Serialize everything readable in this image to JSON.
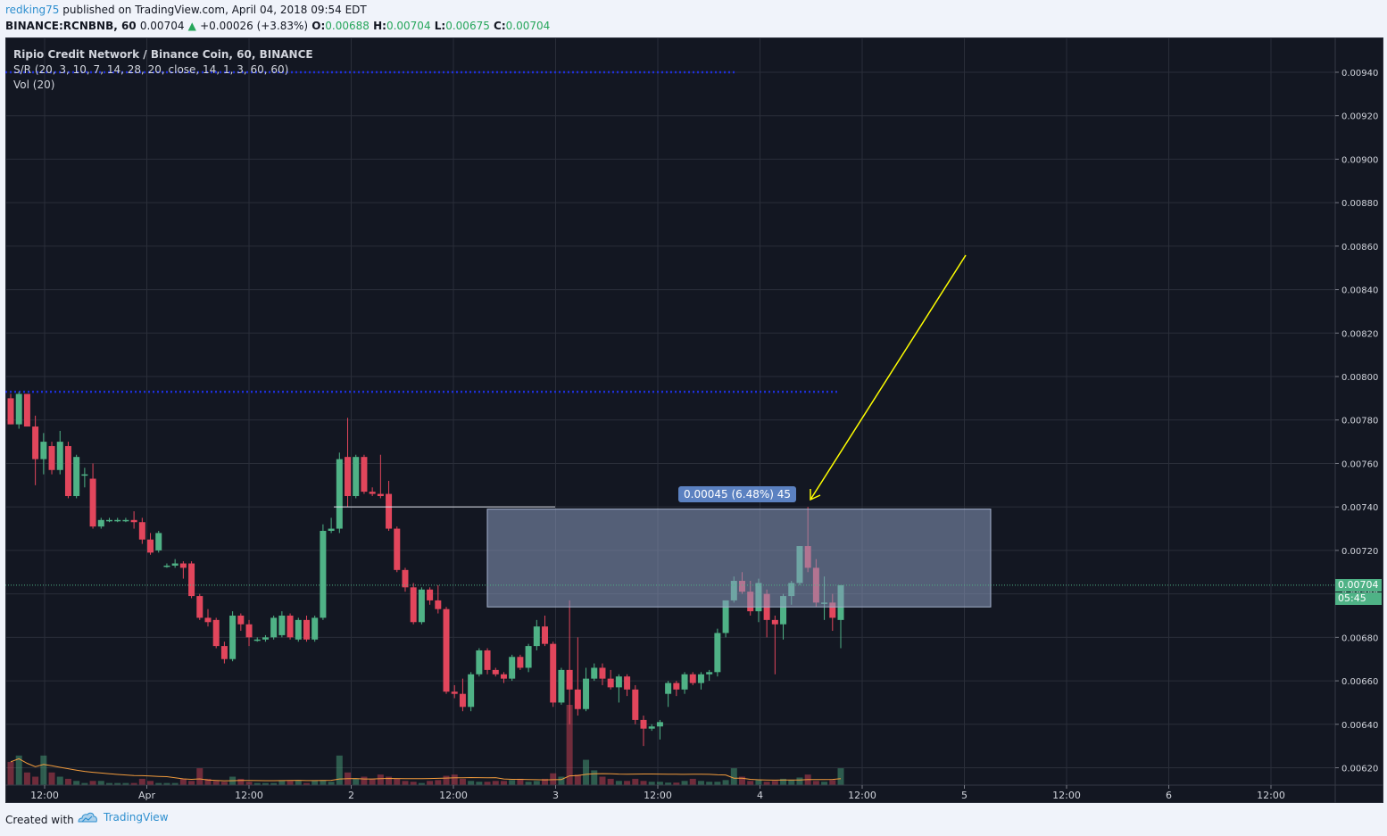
{
  "header": {
    "user": "redking75",
    "published_text": "published on TradingView.com, April 04, 2018 09:54 EDT",
    "symbol": "BINANCE:RCNBNB, 60",
    "last": "0.00704",
    "change": "+0.00026 (+3.83%)",
    "open_label": "O:",
    "open": "0.00688",
    "high_label": "H:",
    "high": "0.00704",
    "low_label": "L:",
    "low": "0.00675",
    "close_label": "C:",
    "close": "0.00704"
  },
  "legend": {
    "title": "Ripio Credit Network / Binance Coin, 60, BINANCE",
    "indicator1": "S/R (20, 3, 10, 7, 14, 28, 20, close, 14, 1, 3, 60, 60)",
    "indicator2": "Vol (20)"
  },
  "measure_label": "0.00045 (6.48%) 45",
  "price_tag": {
    "value": "0.00704",
    "countdown": "05:45"
  },
  "footer": {
    "created_with": "Created with",
    "brand": "TradingView"
  },
  "colors": {
    "up": "#4fb286",
    "down": "#e2465c",
    "bg": "#131722",
    "accent": "#2e8fcf",
    "arrow": "#ffff00",
    "sr_line": "#1e2fd8"
  },
  "chart_data": {
    "type": "candlestick",
    "title": "Ripio Credit Network / Binance Coin, 60, BINANCE",
    "ylim": [
      0.00612,
      0.00956
    ],
    "y_ticks": [
      "0.00620",
      "0.00640",
      "0.00660",
      "0.00680",
      "0.00700",
      "0.00720",
      "0.00740",
      "0.00760",
      "0.00780",
      "0.00800",
      "0.00820",
      "0.00840",
      "0.00860",
      "0.00880",
      "0.00900",
      "0.00920",
      "0.00940"
    ],
    "x_ticks": [
      "12:00",
      "Apr",
      "12:00",
      "2",
      "12:00",
      "3",
      "12:00",
      "4",
      "12:00",
      "5",
      "12:00",
      "6",
      "12:00"
    ],
    "grid": true,
    "support_resistance": [
      0.0094,
      0.00793
    ],
    "last_price": 0.00704,
    "candles": [
      {
        "o": 0.0079,
        "h": 0.00792,
        "l": 0.00778,
        "c": 0.00778
      },
      {
        "o": 0.00778,
        "h": 0.00793,
        "l": 0.00776,
        "c": 0.00792
      },
      {
        "o": 0.00792,
        "h": 0.00792,
        "l": 0.00778,
        "c": 0.00777
      },
      {
        "o": 0.00777,
        "h": 0.00782,
        "l": 0.0075,
        "c": 0.00762
      },
      {
        "o": 0.00762,
        "h": 0.00774,
        "l": 0.00755,
        "c": 0.0077
      },
      {
        "o": 0.00768,
        "h": 0.0077,
        "l": 0.00755,
        "c": 0.00757
      },
      {
        "o": 0.00757,
        "h": 0.00775,
        "l": 0.00755,
        "c": 0.0077
      },
      {
        "o": 0.00768,
        "h": 0.0077,
        "l": 0.00744,
        "c": 0.00745
      },
      {
        "o": 0.00745,
        "h": 0.00764,
        "l": 0.00744,
        "c": 0.00763
      },
      {
        "o": 0.00755,
        "h": 0.00758,
        "l": 0.00749,
        "c": 0.00755
      },
      {
        "o": 0.00753,
        "h": 0.0076,
        "l": 0.0073,
        "c": 0.00731
      },
      {
        "o": 0.00731,
        "h": 0.00735,
        "l": 0.0073,
        "c": 0.00734
      },
      {
        "o": 0.00734,
        "h": 0.00735,
        "l": 0.00733,
        "c": 0.00734
      },
      {
        "o": 0.00734,
        "h": 0.00735,
        "l": 0.00733,
        "c": 0.00734
      },
      {
        "o": 0.00734,
        "h": 0.00735,
        "l": 0.00733,
        "c": 0.00734
      },
      {
        "o": 0.00734,
        "h": 0.00738,
        "l": 0.0073,
        "c": 0.00733
      },
      {
        "o": 0.00733,
        "h": 0.00735,
        "l": 0.00723,
        "c": 0.00725
      },
      {
        "o": 0.00725,
        "h": 0.00728,
        "l": 0.00718,
        "c": 0.00719
      },
      {
        "o": 0.0072,
        "h": 0.00729,
        "l": 0.00719,
        "c": 0.00728
      },
      {
        "o": 0.00713,
        "h": 0.00714,
        "l": 0.00712,
        "c": 0.00713
      },
      {
        "o": 0.00713,
        "h": 0.00716,
        "l": 0.00712,
        "c": 0.00714
      },
      {
        "o": 0.00714,
        "h": 0.00715,
        "l": 0.00707,
        "c": 0.00712
      },
      {
        "o": 0.00714,
        "h": 0.00715,
        "l": 0.00698,
        "c": 0.00699
      },
      {
        "o": 0.00699,
        "h": 0.007,
        "l": 0.00688,
        "c": 0.00689
      },
      {
        "o": 0.00689,
        "h": 0.00693,
        "l": 0.00685,
        "c": 0.00687
      },
      {
        "o": 0.00688,
        "h": 0.00689,
        "l": 0.00675,
        "c": 0.00676
      },
      {
        "o": 0.00676,
        "h": 0.00678,
        "l": 0.00668,
        "c": 0.0067
      },
      {
        "o": 0.0067,
        "h": 0.00692,
        "l": 0.00669,
        "c": 0.0069
      },
      {
        "o": 0.0069,
        "h": 0.00691,
        "l": 0.00683,
        "c": 0.00686
      },
      {
        "o": 0.00686,
        "h": 0.00688,
        "l": 0.00676,
        "c": 0.0068
      },
      {
        "o": 0.00679,
        "h": 0.0068,
        "l": 0.00678,
        "c": 0.00679
      },
      {
        "o": 0.00679,
        "h": 0.00681,
        "l": 0.00678,
        "c": 0.0068
      },
      {
        "o": 0.0068,
        "h": 0.0069,
        "l": 0.00679,
        "c": 0.00689
      },
      {
        "o": 0.00681,
        "h": 0.00692,
        "l": 0.0068,
        "c": 0.0069
      },
      {
        "o": 0.0069,
        "h": 0.00691,
        "l": 0.00679,
        "c": 0.0068
      },
      {
        "o": 0.00679,
        "h": 0.00689,
        "l": 0.00678,
        "c": 0.00688
      },
      {
        "o": 0.00688,
        "h": 0.0069,
        "l": 0.00678,
        "c": 0.00679
      },
      {
        "o": 0.00679,
        "h": 0.0069,
        "l": 0.00678,
        "c": 0.00689
      },
      {
        "o": 0.00689,
        "h": 0.00732,
        "l": 0.00688,
        "c": 0.00729
      },
      {
        "o": 0.00729,
        "h": 0.00735,
        "l": 0.00728,
        "c": 0.0073
      },
      {
        "o": 0.0073,
        "h": 0.00765,
        "l": 0.00728,
        "c": 0.00762
      },
      {
        "o": 0.00763,
        "h": 0.00781,
        "l": 0.0074,
        "c": 0.00745
      },
      {
        "o": 0.00745,
        "h": 0.00764,
        "l": 0.00744,
        "c": 0.00763
      },
      {
        "o": 0.00763,
        "h": 0.00764,
        "l": 0.00746,
        "c": 0.00747
      },
      {
        "o": 0.00747,
        "h": 0.00749,
        "l": 0.00745,
        "c": 0.00746
      },
      {
        "o": 0.00746,
        "h": 0.00764,
        "l": 0.00744,
        "c": 0.00745
      },
      {
        "o": 0.00746,
        "h": 0.00752,
        "l": 0.00729,
        "c": 0.0073
      },
      {
        "o": 0.0073,
        "h": 0.00731,
        "l": 0.0071,
        "c": 0.00711
      },
      {
        "o": 0.00711,
        "h": 0.00712,
        "l": 0.00701,
        "c": 0.00703
      },
      {
        "o": 0.00703,
        "h": 0.00705,
        "l": 0.00686,
        "c": 0.00687
      },
      {
        "o": 0.00687,
        "h": 0.00703,
        "l": 0.00686,
        "c": 0.00702
      },
      {
        "o": 0.00702,
        "h": 0.00703,
        "l": 0.00695,
        "c": 0.00697
      },
      {
        "o": 0.00697,
        "h": 0.00704,
        "l": 0.00691,
        "c": 0.00693
      },
      {
        "o": 0.00693,
        "h": 0.00694,
        "l": 0.00654,
        "c": 0.00655
      },
      {
        "o": 0.00655,
        "h": 0.00658,
        "l": 0.00652,
        "c": 0.00654
      },
      {
        "o": 0.00654,
        "h": 0.00661,
        "l": 0.00646,
        "c": 0.00648
      },
      {
        "o": 0.00648,
        "h": 0.00664,
        "l": 0.00646,
        "c": 0.00663
      },
      {
        "o": 0.00663,
        "h": 0.00675,
        "l": 0.00662,
        "c": 0.00674
      },
      {
        "o": 0.00674,
        "h": 0.00675,
        "l": 0.00663,
        "c": 0.00665
      },
      {
        "o": 0.00665,
        "h": 0.00666,
        "l": 0.00662,
        "c": 0.00663
      },
      {
        "o": 0.00663,
        "h": 0.00664,
        "l": 0.00659,
        "c": 0.00661
      },
      {
        "o": 0.00661,
        "h": 0.00672,
        "l": 0.0066,
        "c": 0.00671
      },
      {
        "o": 0.00671,
        "h": 0.00672,
        "l": 0.00665,
        "c": 0.00666
      },
      {
        "o": 0.00666,
        "h": 0.00677,
        "l": 0.00664,
        "c": 0.00676
      },
      {
        "o": 0.00676,
        "h": 0.00688,
        "l": 0.00674,
        "c": 0.00685
      },
      {
        "o": 0.00685,
        "h": 0.0069,
        "l": 0.00676,
        "c": 0.00677
      },
      {
        "o": 0.00677,
        "h": 0.00678,
        "l": 0.00648,
        "c": 0.0065
      },
      {
        "o": 0.0065,
        "h": 0.00666,
        "l": 0.00649,
        "c": 0.00665
      },
      {
        "o": 0.00665,
        "h": 0.00697,
        "l": 0.0064,
        "c": 0.00656
      },
      {
        "o": 0.00656,
        "h": 0.0068,
        "l": 0.00644,
        "c": 0.00647
      },
      {
        "o": 0.00647,
        "h": 0.00666,
        "l": 0.00646,
        "c": 0.00661
      },
      {
        "o": 0.00661,
        "h": 0.00668,
        "l": 0.0066,
        "c": 0.00666
      },
      {
        "o": 0.00666,
        "h": 0.00668,
        "l": 0.00658,
        "c": 0.00661
      },
      {
        "o": 0.00661,
        "h": 0.00665,
        "l": 0.00656,
        "c": 0.00657
      },
      {
        "o": 0.00657,
        "h": 0.00663,
        "l": 0.0065,
        "c": 0.00662
      },
      {
        "o": 0.00662,
        "h": 0.00663,
        "l": 0.00653,
        "c": 0.00656
      },
      {
        "o": 0.00656,
        "h": 0.00658,
        "l": 0.0064,
        "c": 0.00642
      },
      {
        "o": 0.00642,
        "h": 0.00644,
        "l": 0.0063,
        "c": 0.00638
      },
      {
        "o": 0.00638,
        "h": 0.0064,
        "l": 0.00637,
        "c": 0.00639
      },
      {
        "o": 0.00639,
        "h": 0.00642,
        "l": 0.00633,
        "c": 0.00641
      },
      {
        "o": 0.00654,
        "h": 0.0066,
        "l": 0.00648,
        "c": 0.00659
      },
      {
        "o": 0.00659,
        "h": 0.0066,
        "l": 0.00653,
        "c": 0.00656
      },
      {
        "o": 0.00656,
        "h": 0.00664,
        "l": 0.00654,
        "c": 0.00663
      },
      {
        "o": 0.00663,
        "h": 0.00664,
        "l": 0.00658,
        "c": 0.00659
      },
      {
        "o": 0.00659,
        "h": 0.00664,
        "l": 0.00656,
        "c": 0.00663
      },
      {
        "o": 0.00663,
        "h": 0.00665,
        "l": 0.0066,
        "c": 0.00664
      },
      {
        "o": 0.00664,
        "h": 0.00684,
        "l": 0.00662,
        "c": 0.00682
      },
      {
        "o": 0.00682,
        "h": 0.00697,
        "l": 0.0068,
        "c": 0.00697
      },
      {
        "o": 0.00697,
        "h": 0.00708,
        "l": 0.00696,
        "c": 0.00706
      },
      {
        "o": 0.00706,
        "h": 0.0071,
        "l": 0.007,
        "c": 0.00701
      },
      {
        "o": 0.00701,
        "h": 0.00706,
        "l": 0.0069,
        "c": 0.00692
      },
      {
        "o": 0.00692,
        "h": 0.00707,
        "l": 0.00687,
        "c": 0.00705
      },
      {
        "o": 0.007,
        "h": 0.00702,
        "l": 0.0068,
        "c": 0.00688
      },
      {
        "o": 0.00688,
        "h": 0.0069,
        "l": 0.00663,
        "c": 0.00686
      },
      {
        "o": 0.00686,
        "h": 0.007,
        "l": 0.00679,
        "c": 0.00699
      },
      {
        "o": 0.00699,
        "h": 0.00706,
        "l": 0.00695,
        "c": 0.00705
      },
      {
        "o": 0.00705,
        "h": 0.00722,
        "l": 0.00704,
        "c": 0.00722
      },
      {
        "o": 0.00722,
        "h": 0.0074,
        "l": 0.0071,
        "c": 0.00712
      },
      {
        "o": 0.00712,
        "h": 0.00716,
        "l": 0.00694,
        "c": 0.00696
      },
      {
        "o": 0.00696,
        "h": 0.00708,
        "l": 0.00688,
        "c": 0.00696
      },
      {
        "o": 0.00696,
        "h": 0.007,
        "l": 0.00683,
        "c": 0.00689
      },
      {
        "o": 0.00688,
        "h": 0.00704,
        "l": 0.00675,
        "c": 0.00704
      }
    ],
    "volume": [
      55,
      70,
      30,
      20,
      70,
      30,
      20,
      15,
      10,
      5,
      10,
      10,
      5,
      5,
      5,
      5,
      15,
      10,
      5,
      5,
      5,
      15,
      10,
      40,
      15,
      10,
      8,
      20,
      15,
      8,
      5,
      5,
      5,
      10,
      10,
      10,
      5,
      10,
      12,
      8,
      70,
      30,
      15,
      20,
      15,
      25,
      20,
      15,
      10,
      8,
      5,
      10,
      12,
      22,
      25,
      15,
      10,
      8,
      8,
      10,
      10,
      12,
      15,
      8,
      10,
      15,
      28,
      20,
      190,
      25,
      60,
      35,
      20,
      15,
      10,
      10,
      15,
      10,
      8,
      8,
      6,
      6,
      10,
      15,
      10,
      8,
      8,
      12,
      40,
      20,
      10,
      12,
      8,
      10,
      15,
      12,
      18,
      25,
      10,
      8,
      12,
      40
    ]
  }
}
